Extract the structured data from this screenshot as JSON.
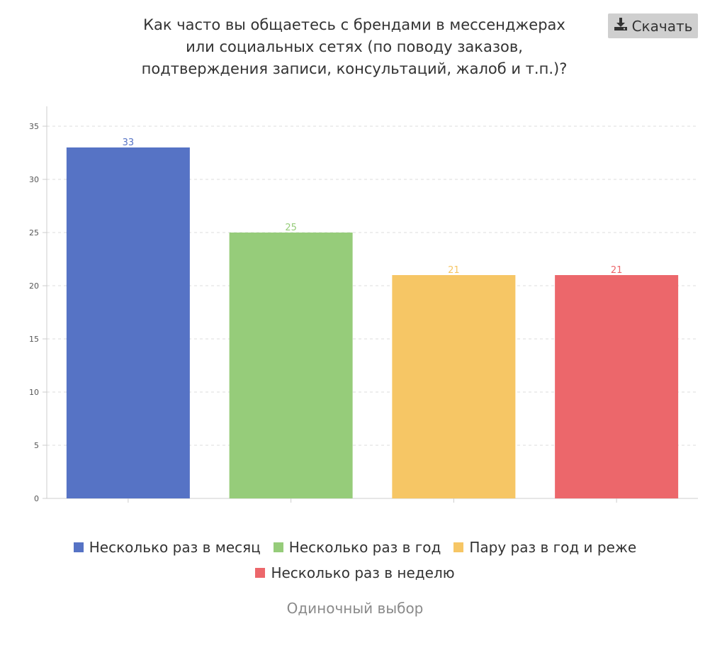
{
  "title_lines": [
    "Как часто вы общаетесь с брендами в мессенджерах",
    "или социальных сетях (по поводу заказов,",
    "подтверждения записи, консультаций, жалоб и т.п.)?"
  ],
  "download_label": "Скачать",
  "footer_note": "Одиночный выбор",
  "chart_data": {
    "type": "bar",
    "categories": [
      "Несколько раз в месяц",
      "Несколько раз в год",
      "Пару раз в год и реже",
      "Несколько раз в неделю"
    ],
    "values": [
      33,
      25,
      21,
      21
    ],
    "colors": [
      "#5673c5",
      "#96cc7a",
      "#f6c665",
      "#ec676b"
    ],
    "ylim": [
      0,
      35
    ],
    "yticks": [
      "0",
      "5",
      "10",
      "15",
      "20",
      "25",
      "30",
      "35"
    ],
    "grid": true,
    "legend_position": "bottom"
  }
}
